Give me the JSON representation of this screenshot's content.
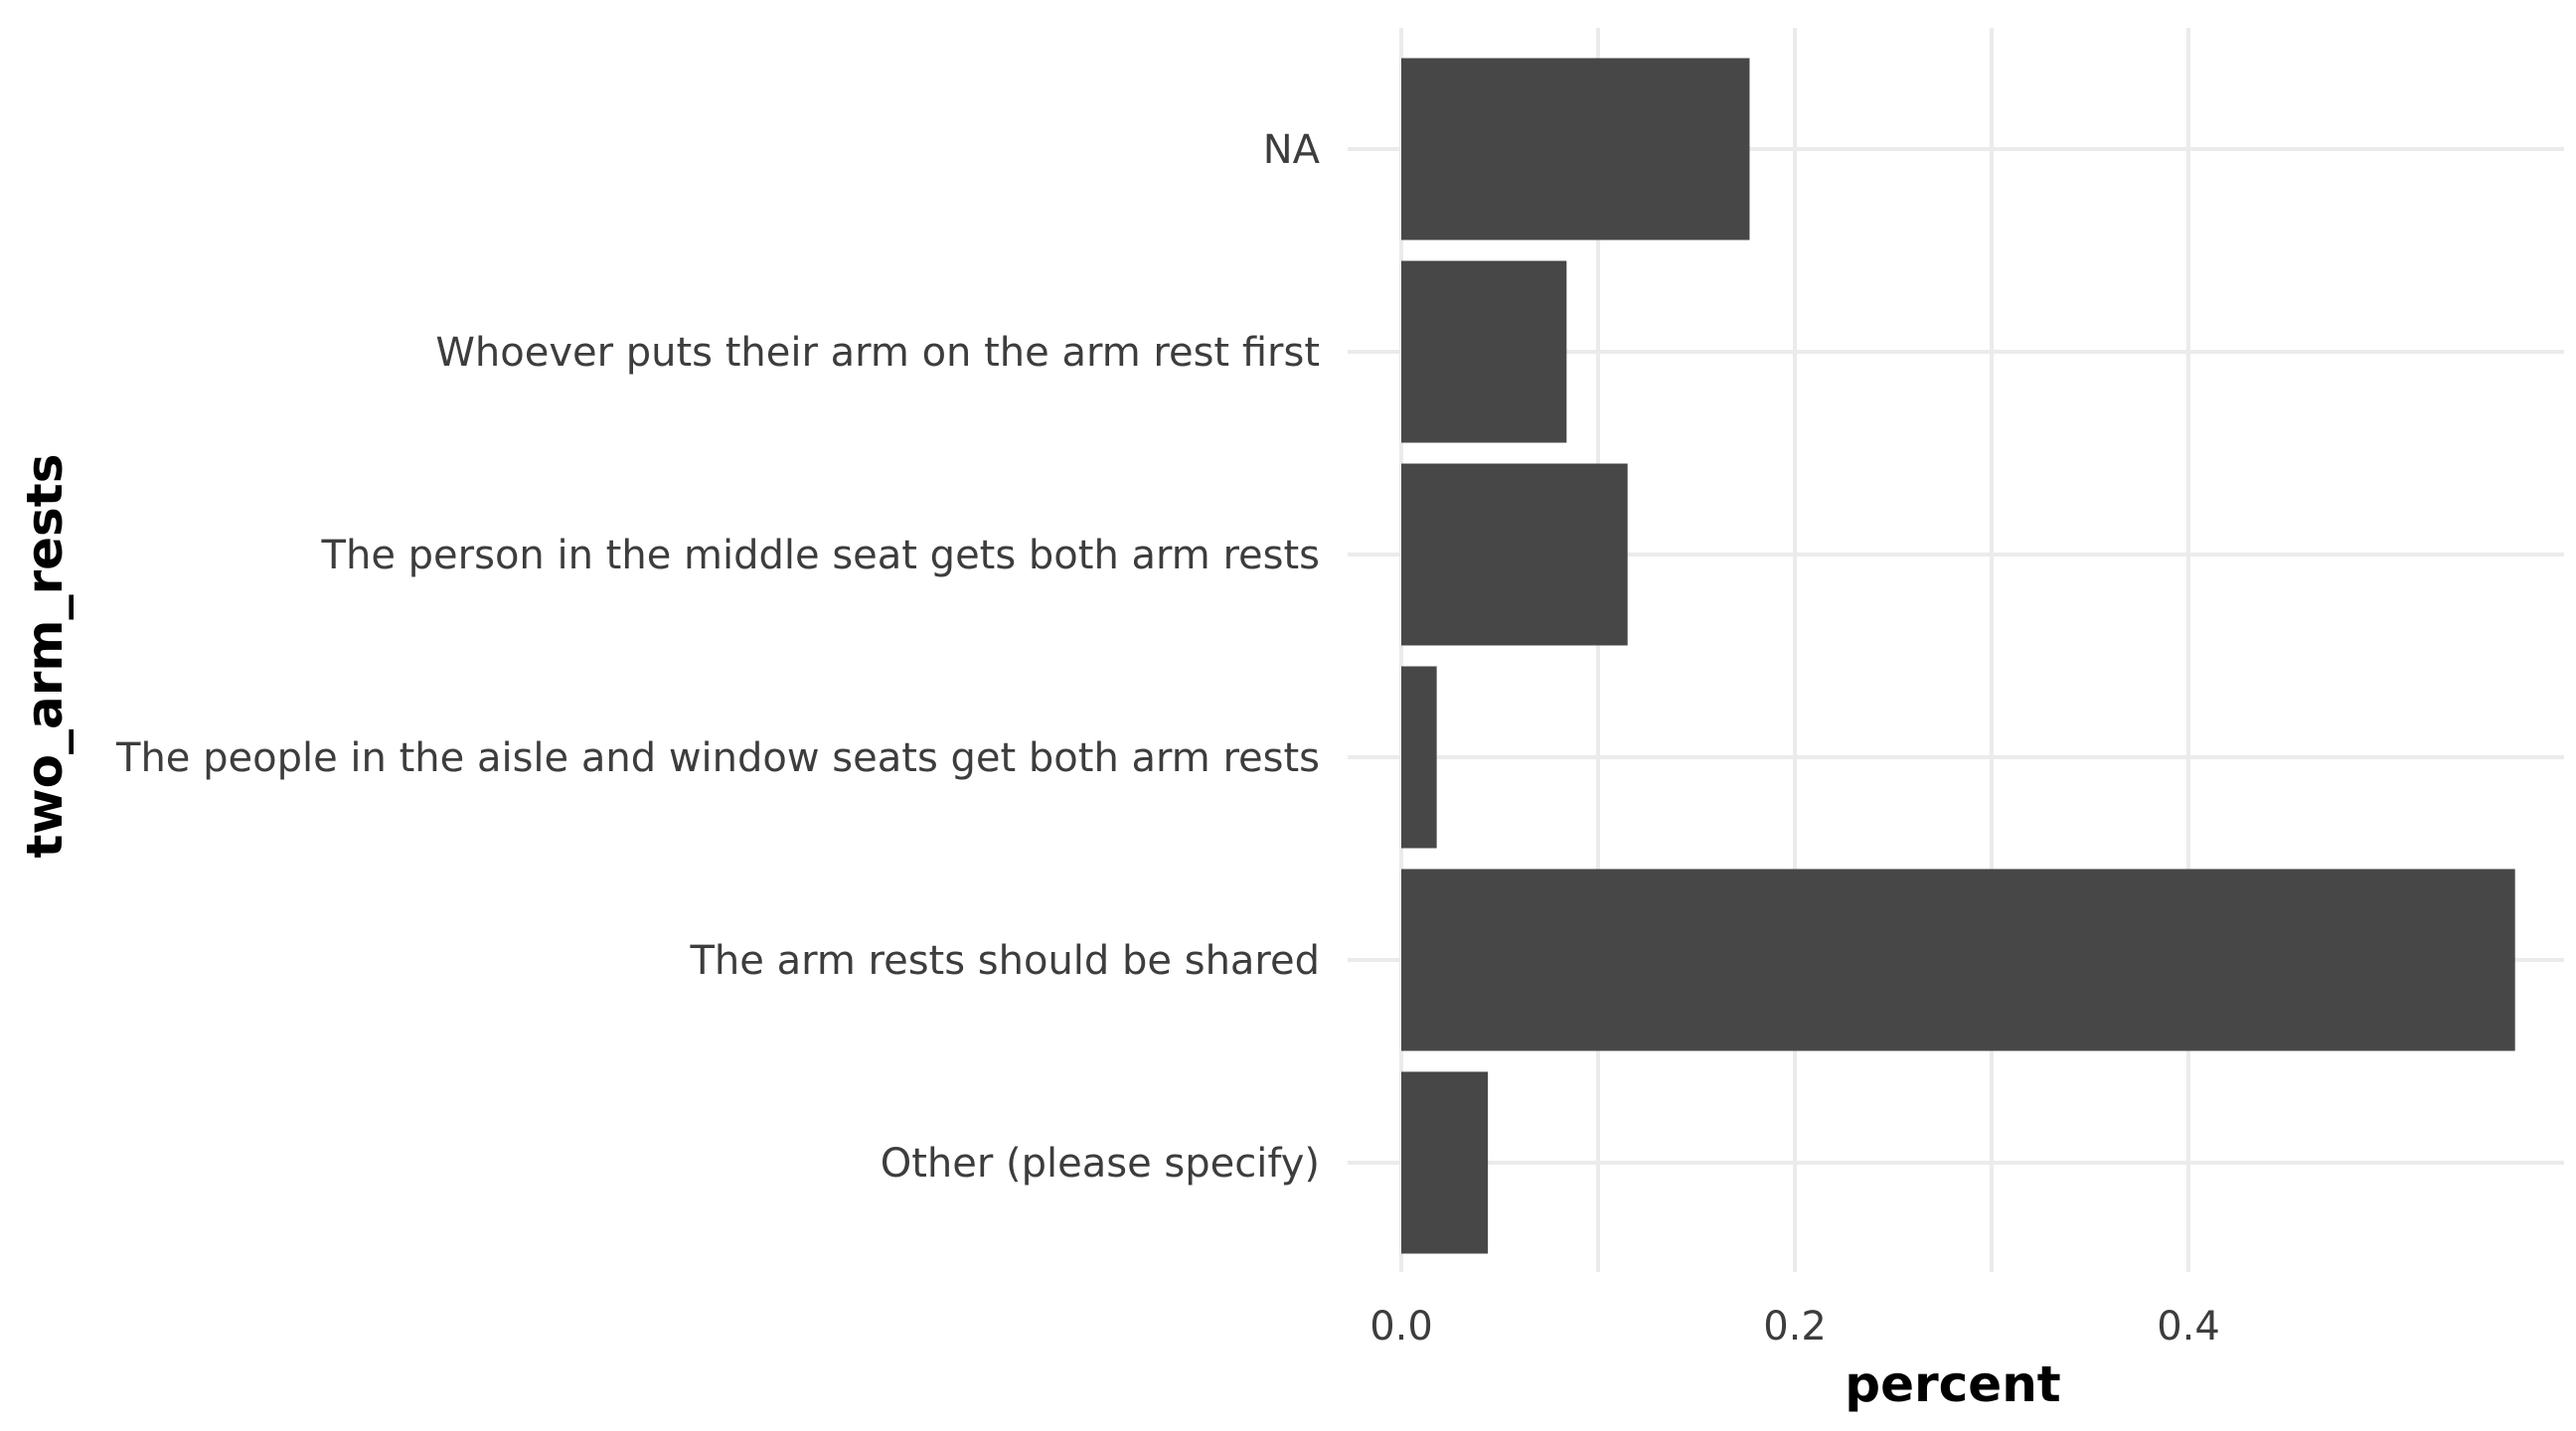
{
  "chart_data": {
    "type": "bar",
    "orientation": "horizontal",
    "categories": [
      "NA",
      "Whoever puts their arm on the arm rest first",
      "The person in the middle seat gets both arm rests",
      "The people in the aisle and window seats get both arm rests",
      "The arm rests should be shared",
      "Other (please specify)"
    ],
    "values": [
      0.177,
      0.084,
      0.115,
      0.018,
      0.566,
      0.044
    ],
    "xlabel": "percent",
    "ylabel": "two_arm_rests",
    "xlim": [
      0,
      0.594
    ],
    "x_ticks": [
      {
        "value": 0.0,
        "label": "0.0"
      },
      {
        "value": 0.2,
        "label": "0.2"
      },
      {
        "value": 0.4,
        "label": "0.4"
      }
    ],
    "grid": true,
    "legend": "none",
    "bar_color": "#474747",
    "grid_color": "#ebebeb"
  }
}
